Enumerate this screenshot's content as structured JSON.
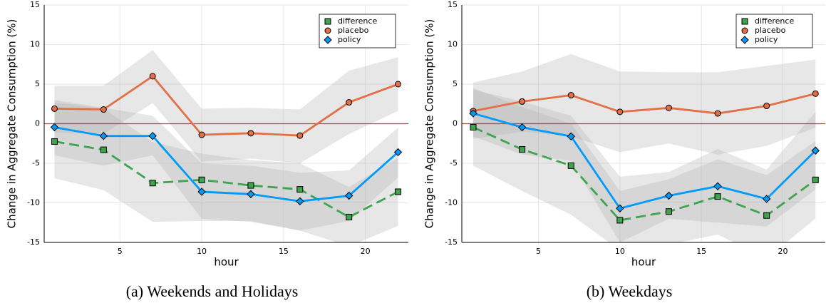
{
  "chart_data": [
    {
      "type": "line",
      "xlabel": "hour",
      "ylabel": "Change in Aggregate Consumption (%)",
      "caption": "(a) Weekends and Holidays",
      "x": [
        1,
        4,
        7,
        10,
        13,
        16,
        19,
        22
      ],
      "xlim": [
        0.37,
        22.63
      ],
      "ylim": [
        -15,
        15
      ],
      "xticks": [
        5,
        10,
        15,
        20
      ],
      "yticks": [
        -15,
        -10,
        -5,
        0,
        5,
        10,
        15
      ],
      "grid": true,
      "legend": "top-right",
      "hline": 0,
      "hline_color": "#e8312f",
      "band_color": "#b0b0b0",
      "series": [
        {
          "name": "difference",
          "color": "#3ea44e",
          "marker": "square",
          "linestyle": "dash",
          "values": [
            -2.25,
            -3.3,
            -7.5,
            -7.1,
            -7.8,
            -8.3,
            -11.8,
            -8.6
          ],
          "upper": [
            2.7,
            1.9,
            -2.3,
            -3.8,
            -4.6,
            -5,
            -8,
            -4.3
          ],
          "lower": [
            -6.9,
            -8.4,
            -12.4,
            -12.3,
            -12.3,
            -13.5,
            -15.5,
            -12.9
          ]
        },
        {
          "name": "placebo",
          "color": "#e36f47",
          "marker": "circle",
          "linestyle": "solid",
          "values": [
            1.9,
            1.8,
            6.0,
            -1.4,
            -1.2,
            -1.5,
            2.7,
            5.0
          ],
          "upper": [
            4.8,
            4.8,
            9.3,
            1.9,
            2.0,
            1.8,
            6.7,
            8.4
          ],
          "lower": [
            -1.1,
            -1.3,
            2.6,
            -4.8,
            -4.4,
            -5,
            -1.3,
            1.6
          ]
        },
        {
          "name": "policy",
          "color": "#009afa",
          "marker": "diamond",
          "linestyle": "solid",
          "values": [
            -0.45,
            -1.55,
            -1.55,
            -8.6,
            -8.9,
            -9.8,
            -9.1,
            -3.6
          ],
          "upper": [
            3.0,
            2.0,
            1.0,
            -5,
            -5.3,
            -6.2,
            -5.9,
            -0.5
          ],
          "lower": [
            -4,
            -5.3,
            -4,
            -12,
            -12.4,
            -13.5,
            -12.3,
            -6.8
          ]
        }
      ]
    },
    {
      "type": "line",
      "xlabel": "hour",
      "ylabel": "Change in Aggregate Consumption (%)",
      "caption": "(b) Weekdays",
      "x": [
        1,
        4,
        7,
        10,
        13,
        16,
        19,
        22
      ],
      "xlim": [
        0.3,
        22.6
      ],
      "ylim": [
        -15,
        15
      ],
      "xticks": [
        5,
        10,
        15,
        20
      ],
      "yticks": [
        -15,
        -10,
        -5,
        0,
        5,
        10,
        15
      ],
      "grid": true,
      "legend": "top-right",
      "hline": 0,
      "hline_color": "#e8312f",
      "band_color": "#b0b0b0",
      "series": [
        {
          "name": "difference",
          "color": "#3ea44e",
          "marker": "square",
          "linestyle": "dash",
          "values": [
            -0.45,
            -3.25,
            -5.3,
            -12.2,
            -11.1,
            -9.2,
            -11.6,
            -7.1
          ],
          "upper": [
            4.5,
            2.1,
            0,
            -8.5,
            -7,
            -4.5,
            -6.5,
            -2.2
          ],
          "lower": [
            -5.3,
            -8.5,
            -11.5,
            -16,
            -15.3,
            -14,
            -17,
            -12
          ]
        },
        {
          "name": "placebo",
          "color": "#e36f47",
          "marker": "circle",
          "linestyle": "solid",
          "values": [
            1.6,
            2.8,
            3.6,
            1.5,
            2.0,
            1.3,
            2.25,
            3.8
          ],
          "upper": [
            5.2,
            6.6,
            8.8,
            6.6,
            6.5,
            6.5,
            7.3,
            8.1
          ],
          "lower": [
            -1.9,
            -1,
            -1.6,
            -3.6,
            -2.5,
            -3.9,
            -2.8,
            -0.5
          ]
        },
        {
          "name": "policy",
          "color": "#009afa",
          "marker": "diamond",
          "linestyle": "solid",
          "values": [
            1.3,
            -0.45,
            -1.6,
            -10.7,
            -9.1,
            -7.9,
            -9.5,
            -3.4
          ],
          "upper": [
            4.3,
            2.8,
            1.0,
            -6.7,
            -6.1,
            -3.2,
            -5.8,
            1.5
          ],
          "lower": [
            -1.6,
            -3.9,
            -4.7,
            -15,
            -12,
            -12.5,
            -13,
            -8.3
          ]
        }
      ]
    }
  ]
}
